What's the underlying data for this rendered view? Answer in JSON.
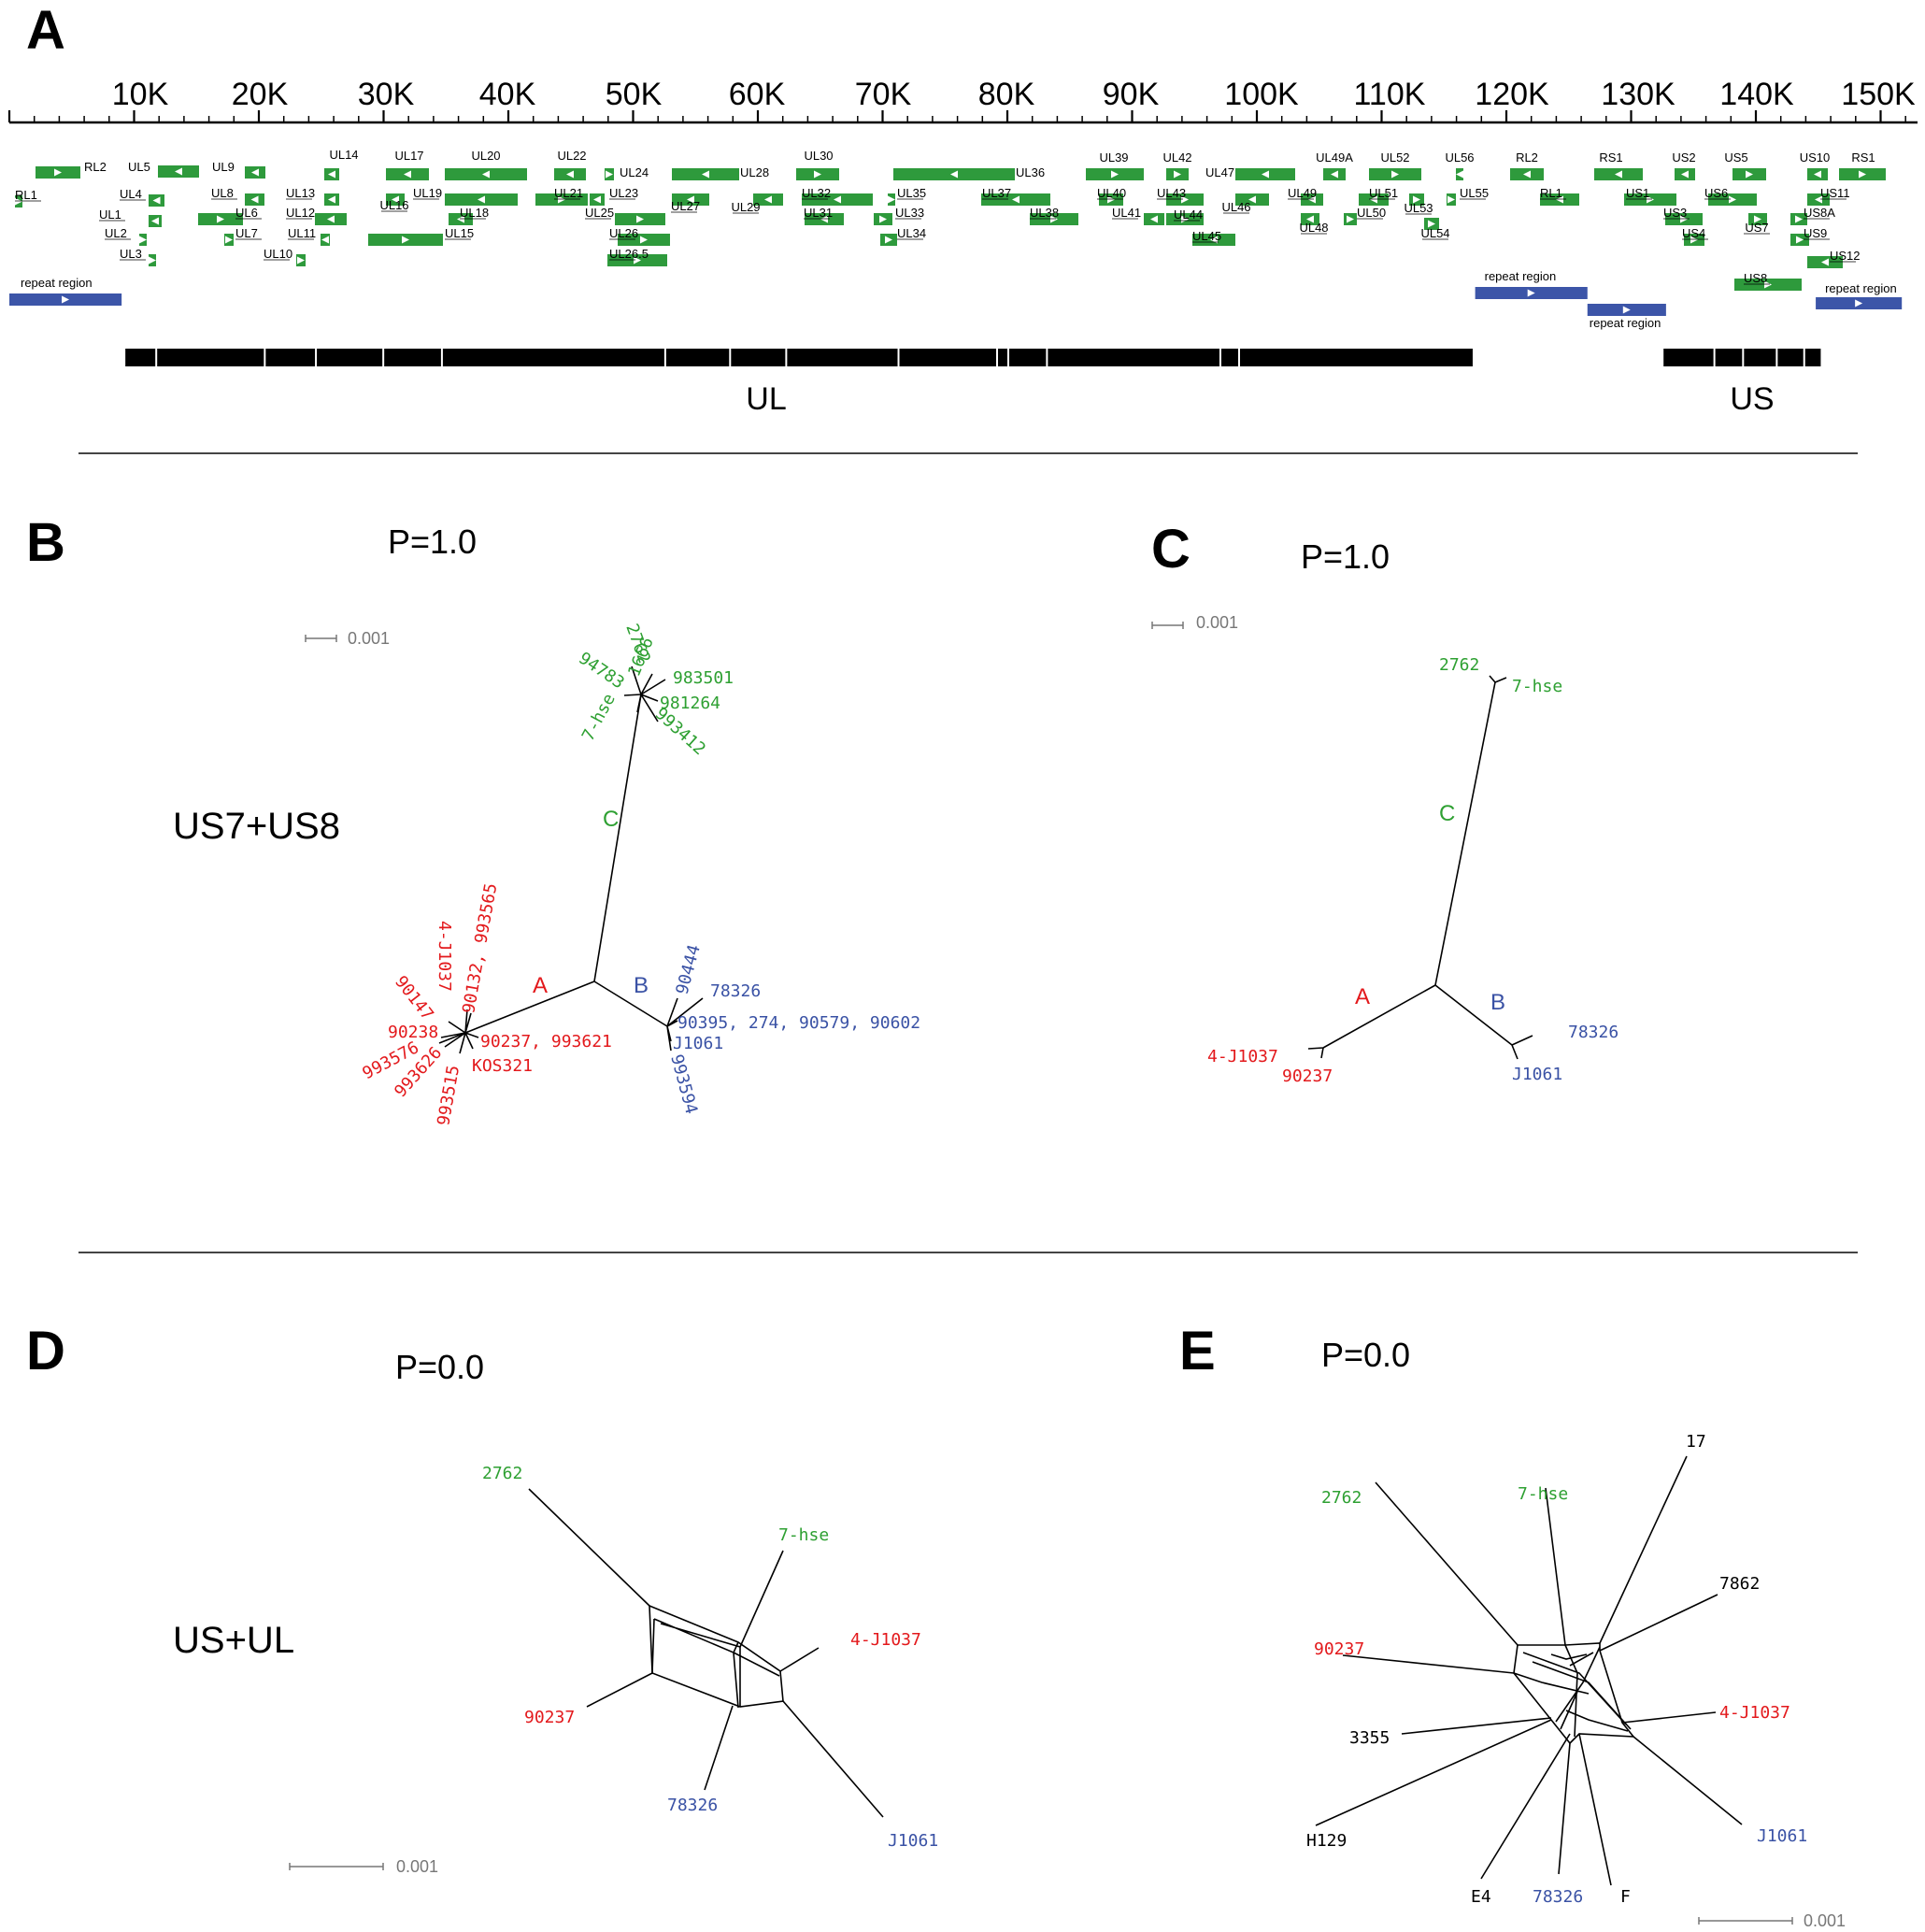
{
  "colors": {
    "A": "#e3191c",
    "B": "#3a52a5",
    "C": "#2ea032",
    "gene": "#2e9a3c",
    "repeat": "#3c55a8",
    "segment": "#000000",
    "scale": "#777777",
    "neutral": "#000000"
  },
  "panels": {
    "A": {
      "letter": "A"
    },
    "B": {
      "letter": "B",
      "p": "P=1.0",
      "label": "US7+US8",
      "scale": "0.001"
    },
    "C": {
      "letter": "C",
      "p": "P=1.0",
      "scale": "0.001"
    },
    "D": {
      "letter": "D",
      "p": "P=0.0",
      "label": "US+UL",
      "scale": "0.001"
    },
    "E": {
      "letter": "E",
      "p": "P=0.0",
      "scale": "0.001"
    }
  },
  "genome": {
    "ticks": [
      "10K",
      "20K",
      "30K",
      "40K",
      "50K",
      "60K",
      "70K",
      "80K",
      "90K",
      "100K",
      "110K",
      "120K",
      "130K",
      "140K",
      "150K"
    ],
    "genes": [
      {
        "name": "RL2",
        "row": 0,
        "dir": "r"
      },
      {
        "name": "RL1",
        "row": 1,
        "dir": "r"
      },
      {
        "name": "UL5",
        "row": 0,
        "dir": "l"
      },
      {
        "name": "UL4",
        "row": 1,
        "dir": "l"
      },
      {
        "name": "UL1",
        "row": 2,
        "dir": "l"
      },
      {
        "name": "UL2",
        "row": 3,
        "dir": "r"
      },
      {
        "name": "UL3",
        "row": 4,
        "dir": "r"
      },
      {
        "name": "UL9",
        "row": 0,
        "dir": "l"
      },
      {
        "name": "UL8",
        "row": 1,
        "dir": "l"
      },
      {
        "name": "UL6",
        "row": 2,
        "dir": "r"
      },
      {
        "name": "UL7",
        "row": 3,
        "dir": "r"
      },
      {
        "name": "UL10",
        "row": 4,
        "dir": "r"
      },
      {
        "name": "UL14",
        "row": 0,
        "dir": "l"
      },
      {
        "name": "UL13",
        "row": 1,
        "dir": "l"
      },
      {
        "name": "UL12",
        "row": 2,
        "dir": "l"
      },
      {
        "name": "UL11",
        "row": 3,
        "dir": "l"
      },
      {
        "name": "UL17",
        "row": 0,
        "dir": "l"
      },
      {
        "name": "UL16",
        "row": 1,
        "dir": "l"
      },
      {
        "name": "UL15",
        "row": 3,
        "dir": "r"
      },
      {
        "name": "UL20",
        "row": 0,
        "dir": "l"
      },
      {
        "name": "UL19",
        "row": 1,
        "dir": "l"
      },
      {
        "name": "UL18",
        "row": 2,
        "dir": "l"
      },
      {
        "name": "UL22",
        "row": 0,
        "dir": "l"
      },
      {
        "name": "UL21",
        "row": 1,
        "dir": "r"
      },
      {
        "name": "UL24",
        "row": 0,
        "dir": "r"
      },
      {
        "name": "UL23",
        "row": 1,
        "dir": "l"
      },
      {
        "name": "UL25",
        "row": 2,
        "dir": "r"
      },
      {
        "name": "UL26",
        "row": 3,
        "dir": "r"
      },
      {
        "name": "UL26.5",
        "row": 4,
        "dir": "r"
      },
      {
        "name": "UL27",
        "row": 1,
        "dir": "l"
      },
      {
        "name": "UL28",
        "row": 0,
        "dir": "l"
      },
      {
        "name": "UL29",
        "row": 1,
        "dir": "l"
      },
      {
        "name": "UL30",
        "row": 0,
        "dir": "r"
      },
      {
        "name": "UL32",
        "row": 1,
        "dir": "l"
      },
      {
        "name": "UL31",
        "row": 2,
        "dir": "l"
      },
      {
        "name": "UL35",
        "row": 1,
        "dir": "r"
      },
      {
        "name": "UL33",
        "row": 2,
        "dir": "r"
      },
      {
        "name": "UL34",
        "row": 3,
        "dir": "r"
      },
      {
        "name": "UL36",
        "row": 0,
        "dir": "l"
      },
      {
        "name": "UL37",
        "row": 1,
        "dir": "l"
      },
      {
        "name": "UL38",
        "row": 2,
        "dir": "r"
      },
      {
        "name": "UL39",
        "row": 0,
        "dir": "r"
      },
      {
        "name": "UL40",
        "row": 1,
        "dir": "r"
      },
      {
        "name": "UL41",
        "row": 2,
        "dir": "l"
      },
      {
        "name": "UL42",
        "row": 0,
        "dir": "r"
      },
      {
        "name": "UL43",
        "row": 1,
        "dir": "r"
      },
      {
        "name": "UL44",
        "row": 2,
        "dir": "r"
      },
      {
        "name": "UL45",
        "row": 3,
        "dir": "l"
      },
      {
        "name": "UL47",
        "row": 0,
        "dir": "l"
      },
      {
        "name": "UL46",
        "row": 1,
        "dir": "l"
      },
      {
        "name": "UL49A",
        "row": 0,
        "dir": "l"
      },
      {
        "name": "UL49",
        "row": 1,
        "dir": "l"
      },
      {
        "name": "UL48",
        "row": 2,
        "dir": "l"
      },
      {
        "name": "UL52",
        "row": 0,
        "dir": "r"
      },
      {
        "name": "UL51",
        "row": 1,
        "dir": "l"
      },
      {
        "name": "UL50",
        "row": 2,
        "dir": "r"
      },
      {
        "name": "UL53",
        "row": 1,
        "dir": "r"
      },
      {
        "name": "UL54",
        "row": 2,
        "dir": "r"
      },
      {
        "name": "UL56",
        "row": 0,
        "dir": "l"
      },
      {
        "name": "UL55",
        "row": 1,
        "dir": "r"
      },
      {
        "name": "RL2",
        "row": 0,
        "dir": "l"
      },
      {
        "name": "RL1",
        "row": 1,
        "dir": "l"
      },
      {
        "name": "RS1",
        "row": 0,
        "dir": "l"
      },
      {
        "name": "US1",
        "row": 1,
        "dir": "r"
      },
      {
        "name": "US2",
        "row": 0,
        "dir": "l"
      },
      {
        "name": "US3",
        "row": 2,
        "dir": "r"
      },
      {
        "name": "US4",
        "row": 3,
        "dir": "r"
      },
      {
        "name": "US5",
        "row": 0,
        "dir": "r"
      },
      {
        "name": "US6",
        "row": 1,
        "dir": "r"
      },
      {
        "name": "US7",
        "row": 2,
        "dir": "r"
      },
      {
        "name": "US8",
        "row": 5,
        "dir": "r"
      },
      {
        "name": "US10",
        "row": 0,
        "dir": "l"
      },
      {
        "name": "US11",
        "row": 1,
        "dir": "l"
      },
      {
        "name": "US8A",
        "row": 2,
        "dir": "r"
      },
      {
        "name": "US9",
        "row": 3,
        "dir": "r"
      },
      {
        "name": "US12",
        "row": 4,
        "dir": "l"
      },
      {
        "name": "RS1",
        "row": 0,
        "dir": "r"
      }
    ],
    "repeats": [
      {
        "name": "repeat region",
        "start": 0,
        "end": 9
      },
      {
        "name": "repeat region",
        "start": 117.5,
        "end": 126.5
      },
      {
        "name": "repeat region",
        "start": 126.5,
        "end": 132.8
      },
      {
        "name": "repeat region",
        "start": 144.8,
        "end": 151.7
      }
    ],
    "segments": [
      {
        "name": "UL",
        "start": 9.3,
        "end": 117.3
      },
      {
        "name": "US",
        "start": 132.6,
        "end": 145.2
      }
    ]
  },
  "treeB": {
    "clades": [
      {
        "name": "A",
        "group": "A"
      },
      {
        "name": "B",
        "group": "B"
      },
      {
        "name": "C",
        "group": "C"
      }
    ],
    "tips": [
      {
        "label": "2762",
        "group": "C"
      },
      {
        "label": "1666",
        "group": "C"
      },
      {
        "label": "94783",
        "group": "C"
      },
      {
        "label": "983501",
        "group": "C"
      },
      {
        "label": "981264",
        "group": "C"
      },
      {
        "label": "7-hse",
        "group": "C"
      },
      {
        "label": "993412",
        "group": "C"
      },
      {
        "label": "4-J1037",
        "group": "A"
      },
      {
        "label": "90132, 993565",
        "group": "A"
      },
      {
        "label": "90147",
        "group": "A"
      },
      {
        "label": "90238",
        "group": "A"
      },
      {
        "label": "90237, 993621",
        "group": "A"
      },
      {
        "label": "993576",
        "group": "A"
      },
      {
        "label": "993626",
        "group": "A"
      },
      {
        "label": "KOS321",
        "group": "A"
      },
      {
        "label": "993515",
        "group": "A"
      },
      {
        "label": "90444",
        "group": "B"
      },
      {
        "label": "78326",
        "group": "B"
      },
      {
        "label": "90395, 274, 90579, 90602",
        "group": "B"
      },
      {
        "label": "J1061",
        "group": "B"
      },
      {
        "label": "993594",
        "group": "B"
      }
    ]
  },
  "treeC": {
    "clades": [
      {
        "name": "A",
        "group": "A"
      },
      {
        "name": "B",
        "group": "B"
      },
      {
        "name": "C",
        "group": "C"
      }
    ],
    "tips": [
      {
        "label": "2762",
        "group": "C"
      },
      {
        "label": "7-hse",
        "group": "C"
      },
      {
        "label": "4-J1037",
        "group": "A"
      },
      {
        "label": "90237",
        "group": "A"
      },
      {
        "label": "78326",
        "group": "B"
      },
      {
        "label": "J1061",
        "group": "B"
      }
    ]
  },
  "treeD": {
    "tips": [
      {
        "label": "2762",
        "group": "C"
      },
      {
        "label": "7-hse",
        "group": "C"
      },
      {
        "label": "4-J1037",
        "group": "A"
      },
      {
        "label": "J1061",
        "group": "B"
      },
      {
        "label": "78326",
        "group": "B"
      },
      {
        "label": "90237",
        "group": "A"
      }
    ]
  },
  "treeE": {
    "tips": [
      {
        "label": "17",
        "group": "neutral"
      },
      {
        "label": "7862",
        "group": "neutral"
      },
      {
        "label": "4-J1037",
        "group": "A"
      },
      {
        "label": "J1061",
        "group": "B"
      },
      {
        "label": "F",
        "group": "neutral"
      },
      {
        "label": "78326",
        "group": "B"
      },
      {
        "label": "E4",
        "group": "neutral"
      },
      {
        "label": "H129",
        "group": "neutral"
      },
      {
        "label": "3355",
        "group": "neutral"
      },
      {
        "label": "90237",
        "group": "A"
      },
      {
        "label": "2762",
        "group": "C"
      },
      {
        "label": "7-hse",
        "group": "C"
      }
    ]
  }
}
